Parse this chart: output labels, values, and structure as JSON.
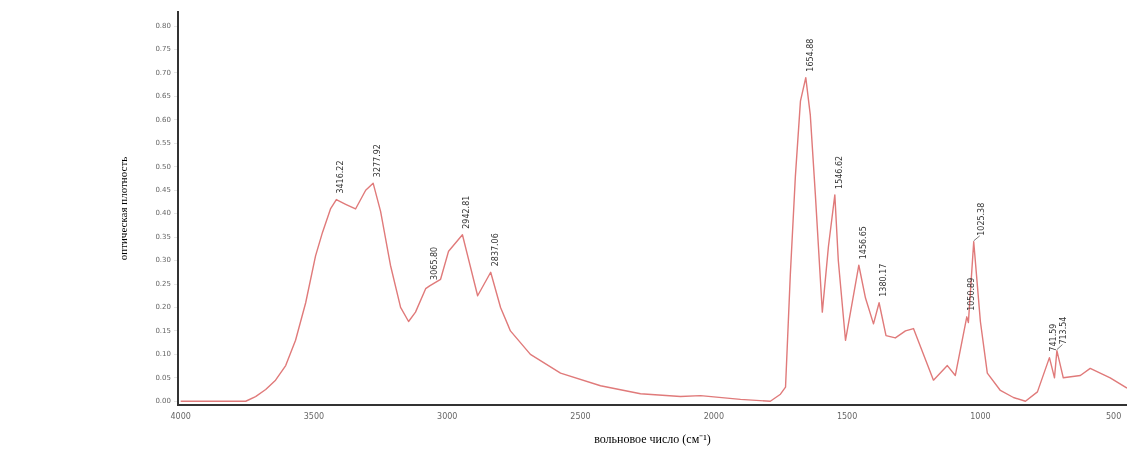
{
  "chart_data": {
    "type": "line",
    "xlabel": "вольновое число (см⁻¹)",
    "ylabel": "оптическая плотность",
    "xlim": [
      4010,
      450
    ],
    "xticks": [
      4000,
      3500,
      3000,
      2500,
      2000,
      1500,
      1000,
      500
    ],
    "ylim": [
      -0.008,
      0.83
    ],
    "yticks": [
      {
        "value": 0,
        "label": "0.00"
      },
      {
        "value": 0.05,
        "label": "0.05"
      },
      {
        "value": 0.1,
        "label": "0.10"
      },
      {
        "value": 0.15,
        "label": "0.15"
      },
      {
        "value": 0.2,
        "label": "0.20"
      },
      {
        "value": 0.25,
        "label": "0.25"
      },
      {
        "value": 0.3,
        "label": "0.30"
      },
      {
        "value": 0.35,
        "label": "0.35"
      },
      {
        "value": 0.4,
        "label": "0.40"
      },
      {
        "value": 0.45,
        "label": "0.45"
      },
      {
        "value": 0.5,
        "label": "0.50"
      },
      {
        "value": 0.55,
        "label": "0.55"
      },
      {
        "value": 0.6,
        "label": "0.60"
      },
      {
        "value": 0.65,
        "label": "0.65"
      },
      {
        "value": 0.7,
        "label": "0.70"
      },
      {
        "value": 0.75,
        "label": "0.75"
      },
      {
        "value": 0.8,
        "label": "0.80"
      }
    ],
    "grid": false,
    "legend": false,
    "marker": "none",
    "line_style": "solid",
    "series": [
      {
        "color": "#e07a7a",
        "x": [
          4000,
          3756,
          3719,
          3681,
          3644,
          3606,
          3569,
          3531,
          3494,
          3468,
          3438,
          3416,
          3381,
          3344,
          3306,
          3278,
          3250,
          3213,
          3175,
          3145,
          3119,
          3081,
          3066,
          3025,
          2995,
          2943,
          2886,
          2837,
          2800,
          2763,
          2688,
          2575,
          2425,
          2275,
          2125,
          2050,
          1900,
          1788,
          1750,
          1731,
          1713,
          1694,
          1675,
          1655,
          1638,
          1619,
          1593,
          1570,
          1546,
          1533,
          1506,
          1456,
          1431,
          1401,
          1380,
          1354,
          1319,
          1281,
          1251,
          1176,
          1124,
          1094,
          1051,
          1045,
          1025,
          1000,
          974,
          925,
          876,
          831,
          786,
          741,
          722,
          713,
          689,
          625,
          588,
          513,
          450
        ],
        "values": [
          0,
          0,
          0.01,
          0.025,
          0.045,
          0.076,
          0.13,
          0.21,
          0.31,
          0.36,
          0.41,
          0.43,
          0.42,
          0.41,
          0.45,
          0.465,
          0.405,
          0.29,
          0.2,
          0.17,
          0.19,
          0.24,
          0.246,
          0.26,
          0.32,
          0.355,
          0.225,
          0.275,
          0.2,
          0.15,
          0.1,
          0.06,
          0.033,
          0.016,
          0.01,
          0.012,
          0.004,
          0,
          0.015,
          0.03,
          0.27,
          0.48,
          0.64,
          0.69,
          0.61,
          0.44,
          0.19,
          0.33,
          0.44,
          0.3,
          0.13,
          0.29,
          0.22,
          0.165,
          0.21,
          0.14,
          0.135,
          0.15,
          0.155,
          0.045,
          0.076,
          0.055,
          0.18,
          0.168,
          0.34,
          0.17,
          0.06,
          0.023,
          0.008,
          0,
          0.02,
          0.093,
          0.05,
          0.108,
          0.05,
          0.055,
          0.07,
          0.05,
          0.028
        ]
      }
    ],
    "annotations": [
      {
        "text": "3416.22",
        "x": 3416,
        "y": 0.43
      },
      {
        "text": "3277.92",
        "x": 3278,
        "y": 0.465
      },
      {
        "text": "3065.80",
        "x": 3066,
        "y": 0.246
      },
      {
        "text": "2942.81",
        "x": 2943,
        "y": 0.355
      },
      {
        "text": "2837.06",
        "x": 2837,
        "y": 0.275
      },
      {
        "text": "1654.88",
        "x": 1655,
        "y": 0.69
      },
      {
        "text": "1546.62",
        "x": 1546,
        "y": 0.44
      },
      {
        "text": "1456.65",
        "x": 1456,
        "y": 0.29
      },
      {
        "text": "1380.17",
        "x": 1380,
        "y": 0.21
      },
      {
        "text": "1050.89",
        "x": 1051,
        "y": 0.18
      },
      {
        "text": "1025.38",
        "x": 1025,
        "y": 0.34
      },
      {
        "text": "741.59",
        "x": 741,
        "y": 0.093
      },
      {
        "text": "713.54",
        "x": 713,
        "y": 0.108
      }
    ]
  }
}
